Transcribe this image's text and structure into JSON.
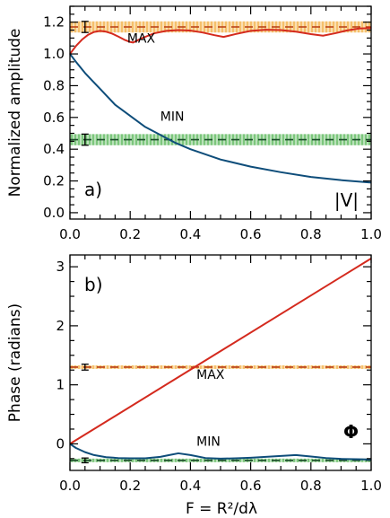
{
  "chart_data": [
    {
      "type": "line",
      "panel_label": "a)",
      "corner_label": "|V|",
      "ylabel": "Normalized amplitude",
      "xlim": [
        0.0,
        1.0
      ],
      "ylim": [
        -0.04,
        1.3
      ],
      "x_ticks": [
        0.0,
        0.2,
        0.4,
        0.6,
        0.8,
        1.0
      ],
      "x_tick_labels": [
        "0.0",
        "0.2",
        "0.4",
        "0.6",
        "0.8",
        "1.0"
      ],
      "y_ticks": [
        0.0,
        0.2,
        0.4,
        0.6,
        0.8,
        1.0,
        1.2
      ],
      "y_tick_labels": [
        "0.0",
        "0.2",
        "0.4",
        "0.6",
        "0.8",
        "1.0",
        "1.2"
      ],
      "series": [
        {
          "name": "MAX",
          "color": "#d42a1e",
          "x": [
            0.0,
            0.02,
            0.04,
            0.06,
            0.08,
            0.1,
            0.12,
            0.14,
            0.16,
            0.18,
            0.2,
            0.21,
            0.24,
            0.28,
            0.32,
            0.36,
            0.4,
            0.44,
            0.48,
            0.51,
            0.55,
            0.6,
            0.65,
            0.7,
            0.75,
            0.8,
            0.84,
            0.88,
            0.92,
            0.96,
            1.0
          ],
          "y": [
            1.0,
            1.05,
            1.09,
            1.12,
            1.138,
            1.145,
            1.14,
            1.128,
            1.11,
            1.09,
            1.075,
            1.072,
            1.1,
            1.13,
            1.145,
            1.15,
            1.147,
            1.135,
            1.118,
            1.107,
            1.125,
            1.145,
            1.152,
            1.15,
            1.14,
            1.125,
            1.115,
            1.13,
            1.148,
            1.16,
            1.163
          ]
        },
        {
          "name": "MIN",
          "color": "#0e4d7a",
          "x": [
            0.0,
            0.02,
            0.05,
            0.08,
            0.1,
            0.15,
            0.2,
            0.25,
            0.3,
            0.35,
            0.4,
            0.5,
            0.6,
            0.7,
            0.8,
            0.9,
            1.0
          ],
          "y": [
            1.0,
            0.95,
            0.88,
            0.82,
            0.78,
            0.68,
            0.61,
            0.54,
            0.49,
            0.44,
            0.4,
            0.335,
            0.29,
            0.255,
            0.225,
            0.205,
            0.19
          ]
        }
      ],
      "reference_bands": [
        {
          "value": 1.17,
          "half_width": 0.035,
          "color": "#f0a020",
          "line_color": "#b83a12",
          "errorbar_x": 0.05,
          "errorbar_half": 0.035
        },
        {
          "value": 0.46,
          "half_width": 0.035,
          "color": "#3aaa3a",
          "line_color": "#1b4d2a",
          "errorbar_x": 0.05,
          "errorbar_half": 0.035
        }
      ],
      "annotations": [
        {
          "text": "MAX",
          "x": 0.19,
          "y": 1.07
        },
        {
          "text": "MIN",
          "x": 0.3,
          "y": 0.58
        }
      ]
    },
    {
      "type": "line",
      "panel_label": "b)",
      "corner_label": "Φ",
      "ylabel": "Phase (radians)",
      "xlabel": "F = R²/dλ",
      "xlim": [
        0.0,
        1.0
      ],
      "ylim": [
        -0.45,
        3.2
      ],
      "x_ticks": [
        0.0,
        0.2,
        0.4,
        0.6,
        0.8,
        1.0
      ],
      "x_tick_labels": [
        "0.0",
        "0.2",
        "0.4",
        "0.6",
        "0.8",
        "1.0"
      ],
      "y_ticks": [
        0,
        1,
        2,
        3
      ],
      "y_tick_labels": [
        "0",
        "1",
        "2",
        "3"
      ],
      "series": [
        {
          "name": "MAX",
          "color": "#d42a1e",
          "x": [
            0.0,
            1.0
          ],
          "y": [
            0.0,
            3.1416
          ]
        },
        {
          "name": "MIN",
          "color": "#0e4d7a",
          "x": [
            0.0,
            0.02,
            0.05,
            0.08,
            0.12,
            0.16,
            0.2,
            0.25,
            0.3,
            0.33,
            0.36,
            0.4,
            0.45,
            0.5,
            0.55,
            0.6,
            0.65,
            0.7,
            0.75,
            0.8,
            0.85,
            0.9,
            0.95,
            1.0
          ],
          "y": [
            0.0,
            -0.07,
            -0.14,
            -0.19,
            -0.225,
            -0.24,
            -0.245,
            -0.245,
            -0.22,
            -0.19,
            -0.16,
            -0.19,
            -0.24,
            -0.25,
            -0.245,
            -0.235,
            -0.22,
            -0.205,
            -0.19,
            -0.215,
            -0.24,
            -0.255,
            -0.26,
            -0.265
          ]
        }
      ],
      "reference_bands": [
        {
          "value": 1.3,
          "half_width": 0.03,
          "color": "#f0a020",
          "line_color": "#b83a12",
          "errorbar_x": 0.05,
          "errorbar_half": 0.05
        },
        {
          "value": -0.28,
          "half_width": 0.03,
          "color": "#3aaa3a",
          "line_color": "#1b4d2a",
          "errorbar_x": 0.05,
          "errorbar_half": 0.04
        }
      ],
      "annotations": [
        {
          "text": "MAX",
          "x": 0.42,
          "y": 1.1
        },
        {
          "text": "MIN",
          "x": 0.42,
          "y": -0.03
        }
      ]
    }
  ]
}
